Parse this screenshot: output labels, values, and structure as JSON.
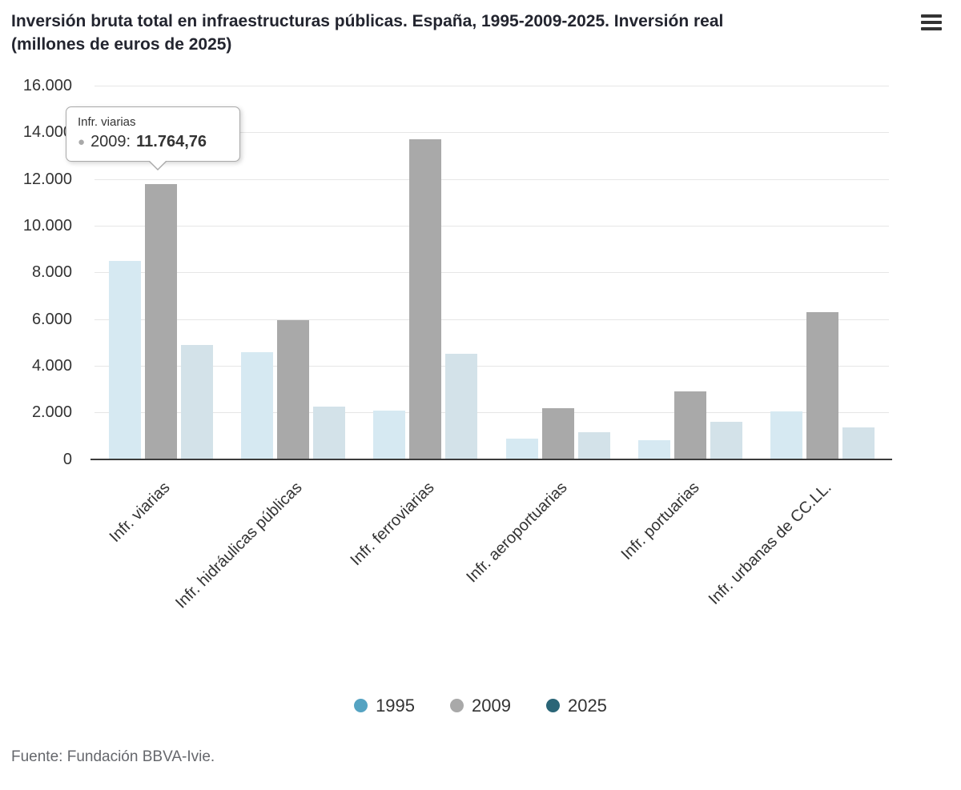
{
  "header": {
    "title_line1": "Inversión bruta total en infraestructuras públicas. España, 1995-2009-2025. Inversión real",
    "title_line2": "(millones de euros de 2025)",
    "menu_icon": "hamburger-icon"
  },
  "chart_data": {
    "type": "bar",
    "title": "Inversión bruta total en infraestructuras públicas. España, 1995-2009-2025. Inversión real (millones de euros de 2025)",
    "categories": [
      "Infr. viarias",
      "Infr. hidráulicas públicas",
      "Infr. ferroviarias",
      "Infr. aeroportuarias",
      "Infr. portuarias",
      "Infr. urbanas de CC.LL."
    ],
    "series": [
      {
        "name": "1995",
        "bar_color": "#d6e9f2",
        "legend_color": "#55a3c2",
        "values": [
          8500,
          4600,
          2100,
          900,
          800,
          2050
        ]
      },
      {
        "name": "2009",
        "bar_color": "#a9a9a9",
        "legend_color": "#a9a9a9",
        "values": [
          11764.76,
          5950,
          13700,
          2200,
          2900,
          6300
        ]
      },
      {
        "name": "2025",
        "bar_color": "#d3e2e9",
        "legend_color": "#2a6577",
        "values": [
          4900,
          2260,
          4500,
          1150,
          1600,
          1350
        ]
      }
    ],
    "ylim": [
      0,
      16000
    ],
    "ytick_interval": 2000,
    "ytick_labels": [
      "0",
      "2.000",
      "4.000",
      "6.000",
      "8.000",
      "10.000",
      "12.000",
      "14.000",
      "16.000"
    ],
    "grid": true,
    "legend_position": "bottom"
  },
  "tooltip": {
    "category": "Infr. viarias",
    "dot": "●",
    "dot_color": "#a9a9a9",
    "series_label": "2009:",
    "value": "11.764,76"
  },
  "footer": {
    "source": "Fuente: Fundación BBVA-Ivie."
  }
}
